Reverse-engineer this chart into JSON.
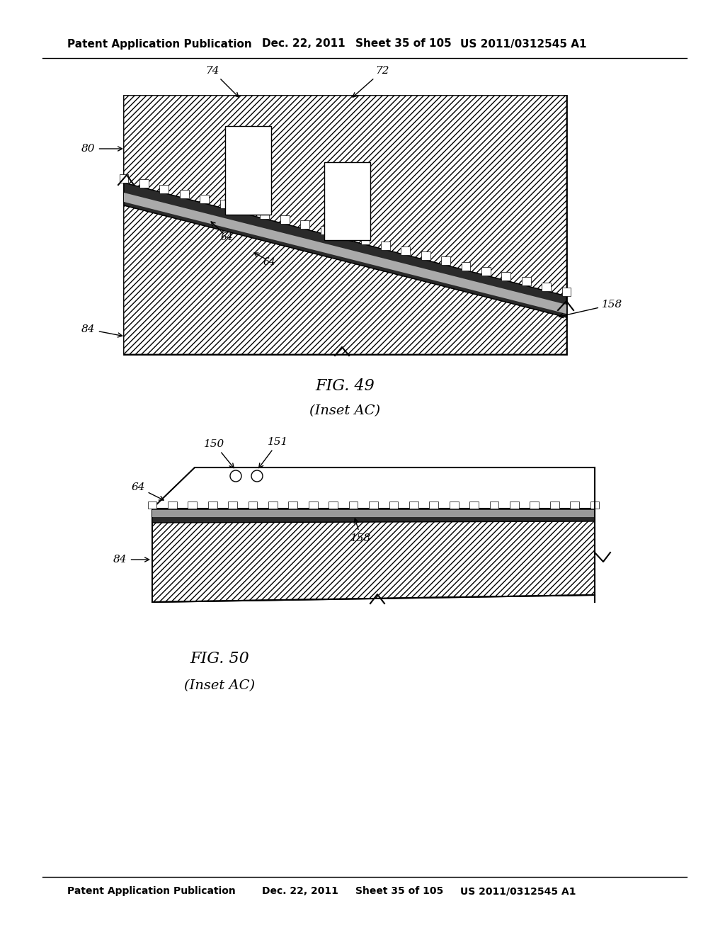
{
  "bg_color": "#ffffff",
  "line_color": "#000000",
  "header_text": "Patent Application Publication",
  "header_date": "Dec. 22, 2011",
  "header_sheet": "Sheet 35 of 105",
  "header_patent": "US 2011/0312545 A1",
  "fig49_title": "FIG. 49",
  "fig49_subtitle": "(Inset AC)",
  "fig50_title": "FIG. 50",
  "fig50_subtitle": "(Inset AC)",
  "hatch_dense": "////",
  "dark_band": "#444444",
  "mid_gray": "#888888"
}
